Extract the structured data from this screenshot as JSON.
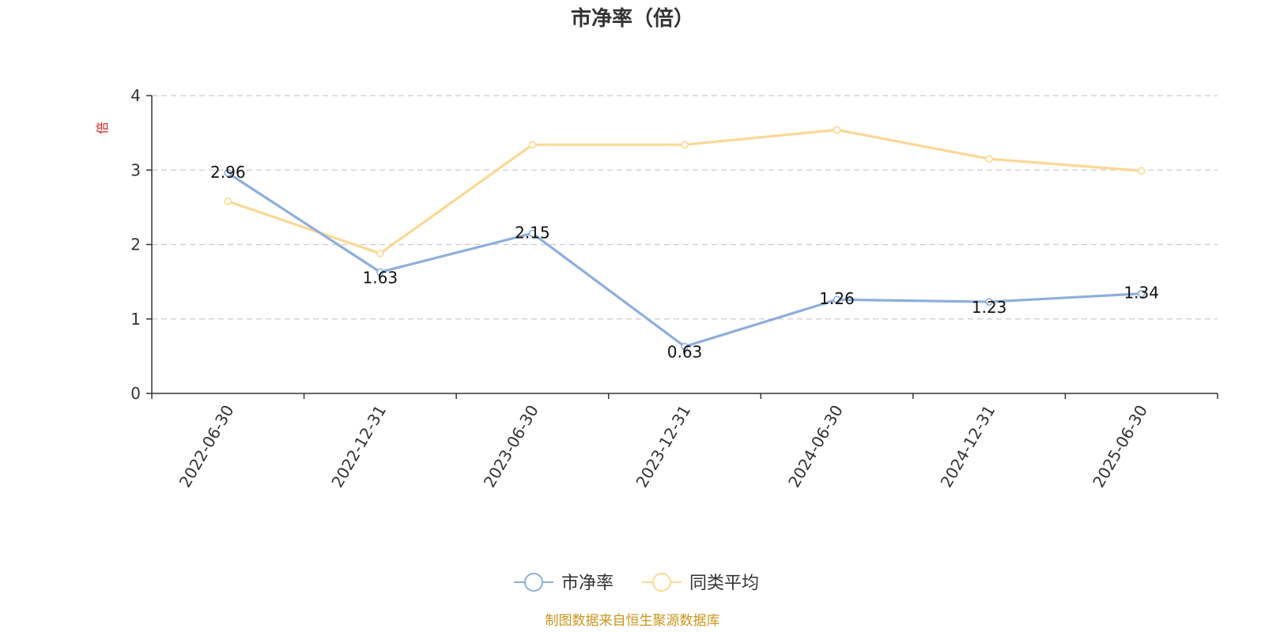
{
  "chart_data": {
    "type": "line",
    "title": "市净率（倍）",
    "ylabel": "倍",
    "xlabel": "",
    "categories": [
      "2022-06-30",
      "2022-12-31",
      "2023-06-30",
      "2023-12-31",
      "2024-06-30",
      "2024-12-31",
      "2025-06-30"
    ],
    "ylim": [
      0,
      4
    ],
    "yticks": [
      "0",
      "1",
      "2",
      "3",
      "4"
    ],
    "grid": true,
    "legend_position": "bottom-center",
    "series": [
      {
        "name": "市净率",
        "color": "#8eaedb",
        "values": [
          2.96,
          1.63,
          2.15,
          0.63,
          1.26,
          1.23,
          1.34
        ],
        "labels": [
          "2.96",
          "1.63",
          "2.15",
          "0.63",
          "1.26",
          "1.23",
          "1.34"
        ]
      },
      {
        "name": "同类平均",
        "color": "#fbd893",
        "values": [
          2.58,
          1.88,
          3.34,
          3.34,
          3.54,
          3.15,
          2.99
        ]
      }
    ],
    "source": "制图数据来自恒生聚源数据库"
  }
}
